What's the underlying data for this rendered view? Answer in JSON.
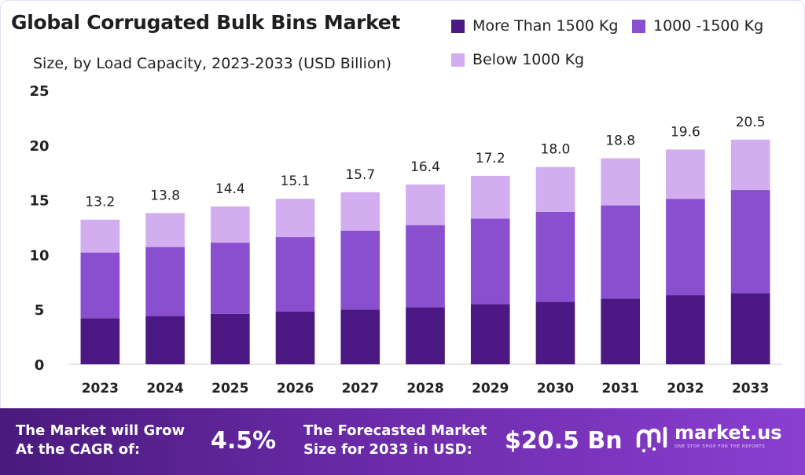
{
  "chart_data": {
    "type": "bar",
    "stacked": true,
    "title": "Global Corrugated Bulk Bins Market",
    "subtitle": "Size, by Load Capacity, 2023-2033 (USD Billion)",
    "categories": [
      "2023",
      "2024",
      "2025",
      "2026",
      "2027",
      "2028",
      "2029",
      "2030",
      "2031",
      "2032",
      "2033"
    ],
    "series": [
      {
        "name": "More Than 1500 Kg",
        "color": "#4b1884",
        "values": [
          4.2,
          4.4,
          4.6,
          4.8,
          5.0,
          5.2,
          5.5,
          5.7,
          6.0,
          6.3,
          6.5
        ]
      },
      {
        "name": "1000 -1500 Kg",
        "color": "#8a4fcf",
        "values": [
          6.0,
          6.3,
          6.5,
          6.8,
          7.2,
          7.5,
          7.8,
          8.2,
          8.5,
          8.8,
          9.4
        ]
      },
      {
        "name": "Below 1000 Kg",
        "color": "#d2aef0",
        "values": [
          3.0,
          3.1,
          3.3,
          3.5,
          3.5,
          3.7,
          3.9,
          4.1,
          4.3,
          4.5,
          4.6
        ]
      }
    ],
    "totals": [
      "13.2",
      "13.8",
      "14.4",
      "15.1",
      "15.7",
      "16.4",
      "17.2",
      "18.0",
      "18.8",
      "19.6",
      "20.5"
    ],
    "ylim": [
      0,
      25
    ],
    "yticks": [
      "0",
      "5",
      "10",
      "15",
      "20",
      "25"
    ],
    "grid": false,
    "legend_position": "top-right"
  },
  "footer": {
    "cagr_label_line1": "The Market will Grow",
    "cagr_label_line2": "At the CAGR of:",
    "cagr_value": "4.5%",
    "forecast_label_line1": "The Forecasted Market",
    "forecast_label_line2": "Size for 2033 in USD:",
    "forecast_value": "$20.5 Bn",
    "brand_name": "market.us",
    "brand_tagline": "ONE STOP SHOP FOR THE REPORTS",
    "colors": {
      "band_start": "#4a1a7c",
      "band_end": "#8a3fd0"
    }
  }
}
